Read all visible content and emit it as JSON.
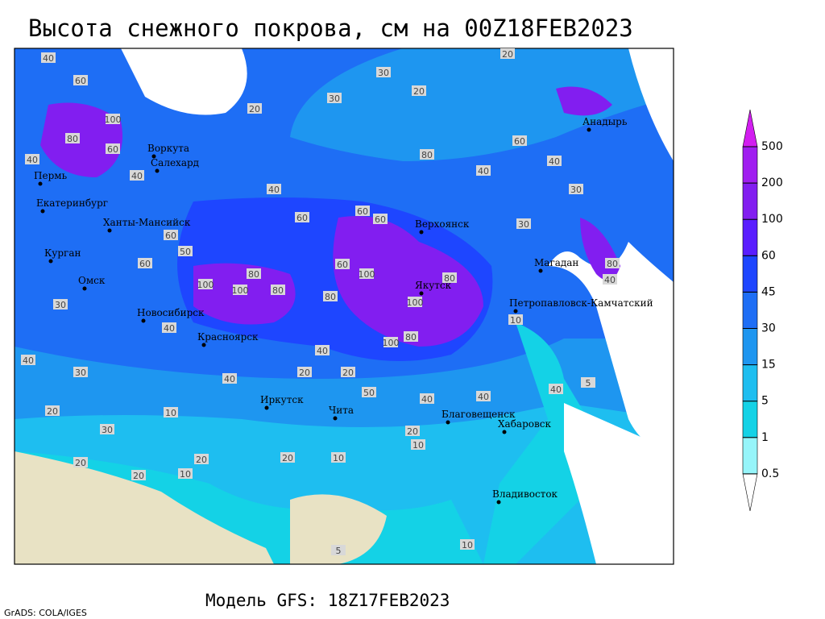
{
  "map_title": "Высота снежного покрова, см на 00Z18FEB2023",
  "model_label": "Модель GFS: 18Z17FEB2023",
  "credit": "GrADS: COLA/IGES",
  "colorbar": {
    "levels": [
      0.5,
      1,
      5,
      15,
      30,
      45,
      60,
      100,
      200,
      500
    ],
    "colors": [
      "#ffffff",
      "#96f5fa",
      "#14d2e6",
      "#1ebef0",
      "#1e96f0",
      "#1e6ef5",
      "#1e46ff",
      "#5a1eff",
      "#821ef0",
      "#a01ef0",
      "#d21ef0"
    ]
  },
  "cities": [
    "Пермь",
    "Екатеринбург",
    "Курган",
    "Омск",
    "Новосибирск",
    "Красноярск",
    "Иркутск",
    "Чита",
    "Благовещенск",
    "Хабаровск",
    "Владивосток",
    "Якутск",
    "Верхоянск",
    "Магадан",
    "Петропавловск-Камчатский",
    "Анадырь",
    "Ханты-Мансийск",
    "Воркута",
    "Салехард"
  ],
  "contour_labels": [
    40,
    60,
    100,
    80,
    60,
    40,
    40,
    40,
    60,
    60,
    60,
    80,
    40,
    40,
    30,
    30,
    60,
    50,
    60,
    80,
    80,
    100,
    60,
    100,
    100,
    100,
    80,
    80,
    100,
    80,
    40,
    40,
    40,
    30,
    30,
    40,
    20,
    20,
    50,
    40,
    40,
    60,
    80,
    40,
    10,
    40,
    5,
    20,
    10,
    20,
    10,
    20,
    20,
    10,
    20,
    10,
    30,
    20,
    10,
    5,
    30,
    20,
    20,
    20,
    30
  ]
}
